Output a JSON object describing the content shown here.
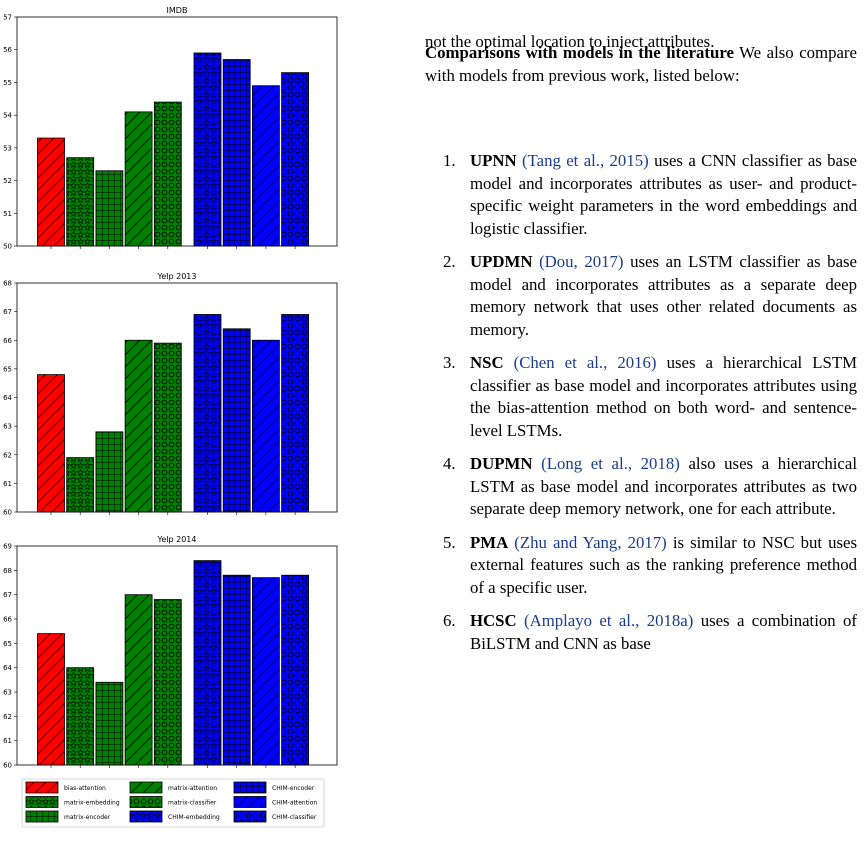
{
  "text": {
    "top_line": "not the optimal location to inject attributes.",
    "heading_bold": "Comparisons with models in the literature",
    "heading_rest": "We also compare with models from previous work, listed below:",
    "items": [
      {
        "num": "1.",
        "name": "UPNN",
        "cite": "(Tang et al., 2015)",
        "body": "uses a CNN classifier as base model and incorporates attributes as user- and product-specific weight parameters in the word embeddings and logistic classifier."
      },
      {
        "num": "2.",
        "name": "UPDMN",
        "cite": "(Dou, 2017)",
        "body": "uses an LSTM classifier as base model and incorporates attributes as a separate deep memory network that uses other related documents as memory."
      },
      {
        "num": "3.",
        "name": "NSC",
        "cite": "(Chen et al., 2016)",
        "body": "uses a hierarchical LSTM classifier as base model and incorporates attributes using the bias-attention method on both word- and sentence-level LSTMs."
      },
      {
        "num": "4.",
        "name": "DUPMN",
        "cite": "(Long et al., 2018)",
        "body": "also uses a hierarchical LSTM as base model and incorporates attributes as two separate deep memory network, one for each attribute."
      },
      {
        "num": "5.",
        "name": "PMA",
        "cite": "(Zhu and Yang, 2017)",
        "body": "is similar to NSC but uses external features such as the ranking preference method of a specific user."
      },
      {
        "num": "6.",
        "name": "HCSC",
        "cite": "(Amplayo et al., 2018a)",
        "body": "uses a combination of BiLSTM and CNN as base"
      }
    ]
  },
  "chart_data": [
    {
      "type": "bar",
      "title": "IMDB",
      "series_names": [
        "bias-attention",
        "matrix-embedding",
        "matrix-encoder",
        "matrix-attention",
        "matrix-classifier",
        "CHIM-embedding",
        "CHIM-encoder",
        "CHIM-attention",
        "CHIM-classifier"
      ],
      "values": [
        53.3,
        52.7,
        52.3,
        54.1,
        54.4,
        55.9,
        55.7,
        54.9,
        55.3
      ],
      "ylim": [
        50,
        57
      ],
      "yticks": [
        "50",
        "51",
        "52",
        "53",
        "54",
        "55",
        "56",
        "57"
      ]
    },
    {
      "type": "bar",
      "title": "Yelp 2013",
      "series_names": [
        "bias-attention",
        "matrix-embedding",
        "matrix-encoder",
        "matrix-attention",
        "matrix-classifier",
        "CHIM-embedding",
        "CHIM-encoder",
        "CHIM-attention",
        "CHIM-classifier"
      ],
      "values": [
        64.8,
        61.9,
        62.8,
        66.0,
        65.9,
        66.9,
        66.4,
        66.0,
        66.9
      ],
      "ylim": [
        60,
        68
      ],
      "yticks": [
        "60",
        "61",
        "62",
        "63",
        "64",
        "65",
        "66",
        "67",
        "68"
      ]
    },
    {
      "type": "bar",
      "title": "Yelp 2014",
      "series_names": [
        "bias-attention",
        "matrix-embedding",
        "matrix-encoder",
        "matrix-attention",
        "matrix-classifier",
        "CHIM-embedding",
        "CHIM-encoder",
        "CHIM-attention",
        "CHIM-classifier"
      ],
      "values": [
        65.4,
        64.0,
        63.4,
        67.0,
        66.8,
        68.4,
        67.8,
        67.7,
        67.8
      ],
      "ylim": [
        60,
        69
      ],
      "yticks": [
        "60",
        "61",
        "62",
        "63",
        "64",
        "65",
        "66",
        "67",
        "68",
        "69"
      ]
    }
  ],
  "legend": [
    {
      "label": "bias-attention",
      "color": "#ff0000",
      "pattern": "slash"
    },
    {
      "label": "matrix-attention",
      "color": "#008000",
      "pattern": "slash"
    },
    {
      "label": "CHIM-encoder",
      "color": "#0000ff",
      "pattern": "grid"
    },
    {
      "label": "matrix-embedding",
      "color": "#008000",
      "pattern": "star"
    },
    {
      "label": "matrix-classifier",
      "color": "#008000",
      "pattern": "circle"
    },
    {
      "label": "CHIM-attention",
      "color": "#0000ff",
      "pattern": "slash"
    },
    {
      "label": "matrix-encoder",
      "color": "#008000",
      "pattern": "grid"
    },
    {
      "label": "CHIM-embedding",
      "color": "#0000ff",
      "pattern": "star"
    },
    {
      "label": "CHIM-classifier",
      "color": "#0000ff",
      "pattern": "circle"
    }
  ],
  "bar_styles": [
    {
      "color": "#ff0000",
      "pattern": "slash"
    },
    {
      "color": "#008000",
      "pattern": "star"
    },
    {
      "color": "#008000",
      "pattern": "grid"
    },
    {
      "color": "#008000",
      "pattern": "slash"
    },
    {
      "color": "#008000",
      "pattern": "circle"
    },
    {
      "color": "#0000ff",
      "pattern": "star"
    },
    {
      "color": "#0000ff",
      "pattern": "grid"
    },
    {
      "color": "#0000ff",
      "pattern": "slash"
    },
    {
      "color": "#0000ff",
      "pattern": "circle"
    }
  ]
}
